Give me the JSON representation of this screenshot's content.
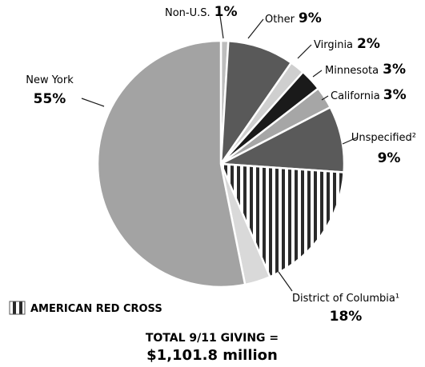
{
  "chart_data": {
    "type": "pie",
    "slices": [
      {
        "label": "Non-U.S.",
        "pct_text": "1%",
        "value": 1,
        "fill": "#bdbdbd",
        "pattern": false
      },
      {
        "label": "Other",
        "pct_text": "9%",
        "value": 9,
        "fill": "#595959",
        "pattern": false
      },
      {
        "label": "Virginia",
        "pct_text": "2%",
        "value": 2,
        "fill": "#cfcfcf",
        "pattern": false
      },
      {
        "label": "Minnesota",
        "pct_text": "3%",
        "value": 3,
        "fill": "#1a1a1a",
        "pattern": false
      },
      {
        "label": "California",
        "pct_text": "3%",
        "value": 3,
        "fill": "#a6a6a6",
        "pattern": false
      },
      {
        "label": "Unspecified²",
        "pct_text": "9%",
        "value": 9,
        "fill": "#5a5a5a",
        "pattern": false
      },
      {
        "label": "District of Columbia¹",
        "pct_text": "18%",
        "value": 18,
        "fill": "#ffffff",
        "pattern": true
      },
      {
        "label": "",
        "pct_text": "",
        "value": 3.5,
        "fill": "#d9d9d9",
        "pattern": false
      },
      {
        "label": "New York",
        "pct_text": "55%",
        "value": 55,
        "fill": "#a3a3a3",
        "pattern": false
      }
    ],
    "legend": {
      "label": "AMERICAN RED CROSS",
      "placement": "bottom-left"
    },
    "total_line1": "TOTAL 9/11 GIVING =",
    "total_line2": "$1,101.8 million"
  }
}
